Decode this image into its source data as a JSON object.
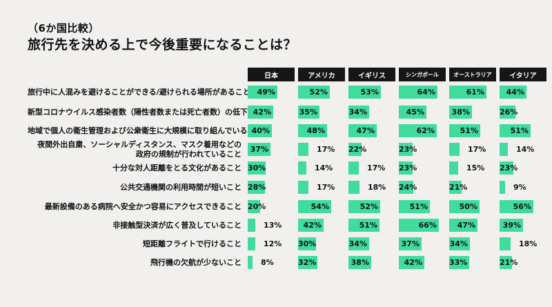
{
  "header": {
    "subtitle": "（6か国比較）",
    "title": "旅行先を決める上で今後重要になることは？"
  },
  "chart_data": {
    "type": "bar",
    "columns": [
      "日本",
      "アメリカ",
      "イギリス",
      "シンガポール",
      "オーストラリア",
      "イタリア"
    ],
    "rows": [
      {
        "label": "旅行中に人混みを避けることができる/避けられる場所があること",
        "values": [
          49,
          52,
          53,
          64,
          61,
          44
        ]
      },
      {
        "label": "新型コロナウイルス感染者数（陽性者数または死亡者数）の低下",
        "values": [
          42,
          35,
          34,
          45,
          38,
          26
        ]
      },
      {
        "label": "地域で個人の衛生管理および公衆衛生に大規模に取り組んでいること",
        "values": [
          40,
          48,
          47,
          62,
          51,
          51
        ]
      },
      {
        "label": [
          "夜間外出自粛、ソーシャルディスタンス、マスク着用などの",
          "政府の規制が行われていること"
        ],
        "values": [
          37,
          17,
          22,
          23,
          17,
          14
        ]
      },
      {
        "label": "十分な対人距離をとる文化があること",
        "values": [
          30,
          14,
          17,
          23,
          15,
          23
        ]
      },
      {
        "label": "公共交通機関の利用時間が短いこと",
        "values": [
          28,
          17,
          18,
          24,
          21,
          9
        ]
      },
      {
        "label": "最新設備のある病院へ安全かつ容易にアクセスできること",
        "values": [
          20,
          54,
          52,
          51,
          50,
          56
        ]
      },
      {
        "label": "非接触型決済が広く普及していること",
        "values": [
          13,
          42,
          51,
          66,
          47,
          39
        ]
      },
      {
        "label": "短距離フライトで行けること",
        "values": [
          12,
          30,
          34,
          37,
          34,
          18
        ]
      },
      {
        "label": "飛行機の欠航が少ないこと",
        "values": [
          8,
          32,
          38,
          42,
          33,
          21
        ]
      }
    ],
    "value_suffix": "%",
    "bar_color": "#3fdc9e",
    "header_bg": "#161616"
  }
}
